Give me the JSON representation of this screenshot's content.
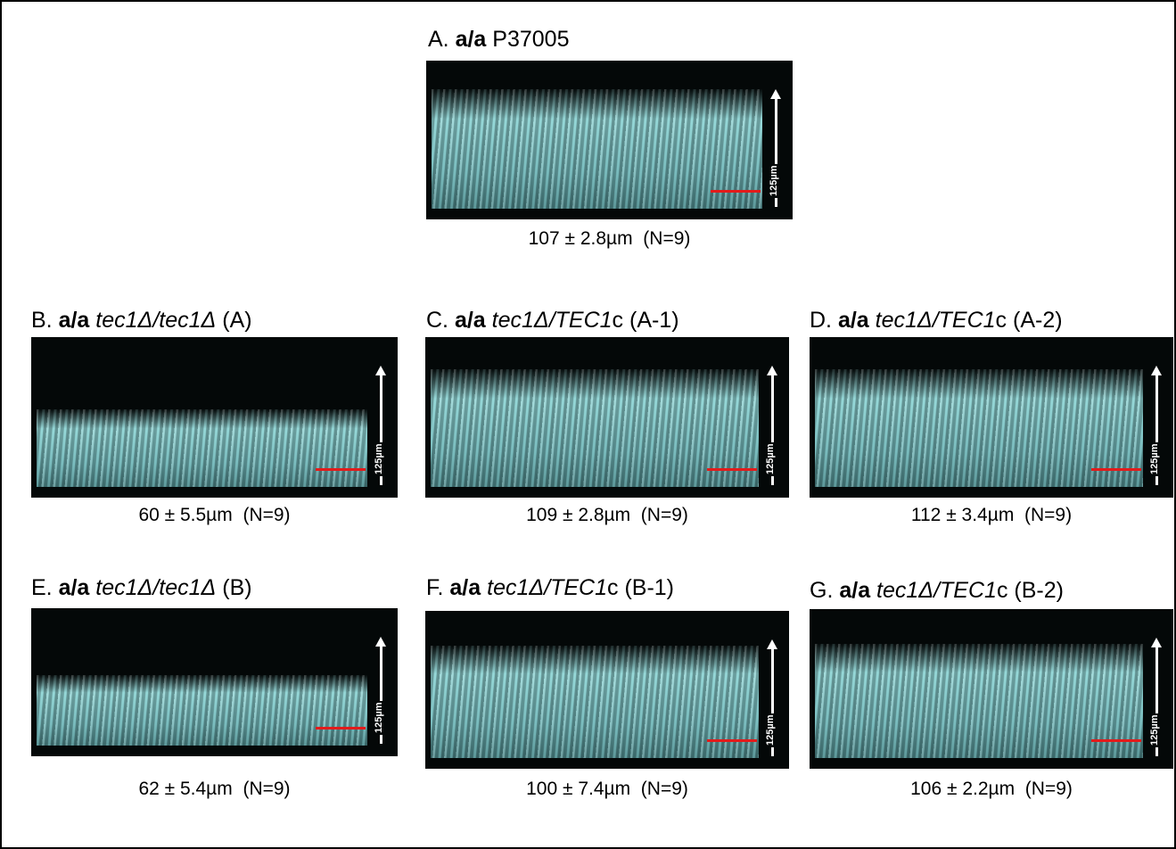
{
  "panels": [
    {
      "title": [
        {
          "text": "A. ",
          "style": "normal"
        },
        {
          "text": "a/a",
          "style": "bold"
        },
        {
          "text": " P37005",
          "style": "normal"
        }
      ],
      "caption": "107 ± 2.8µm  (N=9)",
      "scale_label": "125µm"
    },
    {
      "title": [
        {
          "text": "B. ",
          "style": "normal"
        },
        {
          "text": "a/a",
          "style": "bold"
        },
        {
          "text": " tec1Δ/tec1Δ",
          "style": "italic"
        },
        {
          "text": " (A)",
          "style": "normal"
        }
      ],
      "caption": "60 ± 5.5µm  (N=9)",
      "scale_label": "125µm"
    },
    {
      "title": [
        {
          "text": "C. ",
          "style": "normal"
        },
        {
          "text": "a/a",
          "style": "bold"
        },
        {
          "text": " tec1Δ/TEC1",
          "style": "italic"
        },
        {
          "text": "c (A-1)",
          "style": "normal"
        }
      ],
      "caption": "109 ± 2.8µm  (N=9)",
      "scale_label": "125µm"
    },
    {
      "title": [
        {
          "text": "D. ",
          "style": "normal"
        },
        {
          "text": "a/a",
          "style": "bold"
        },
        {
          "text": " tec1Δ/TEC1",
          "style": "italic"
        },
        {
          "text": "c (A-2)",
          "style": "normal"
        }
      ],
      "caption": "112 ± 3.4µm  (N=9)",
      "scale_label": "125µm"
    },
    {
      "title": [
        {
          "text": "E. ",
          "style": "normal"
        },
        {
          "text": "a/a",
          "style": "bold"
        },
        {
          "text": " tec1Δ/tec1Δ",
          "style": "italic"
        },
        {
          "text": " (B)",
          "style": "normal"
        }
      ],
      "caption": "62 ± 5.4µm  (N=9)",
      "scale_label": "125µm"
    },
    {
      "title": [
        {
          "text": "F. ",
          "style": "normal"
        },
        {
          "text": "a/a",
          "style": "bold"
        },
        {
          "text": " tec1Δ/TEC1",
          "style": "italic"
        },
        {
          "text": "c (B-1)",
          "style": "normal"
        }
      ],
      "caption": "100 ± 7.4µm  (N=9)",
      "scale_label": "125µm"
    },
    {
      "title": [
        {
          "text": "G. ",
          "style": "normal"
        },
        {
          "text": "a/a",
          "style": "bold"
        },
        {
          "text": " tec1Δ/TEC1",
          "style": "italic"
        },
        {
          "text": "c (B-2)",
          "style": "normal"
        }
      ],
      "caption": "106 ± 2.2µm  (N=9)",
      "scale_label": "125µm"
    }
  ]
}
